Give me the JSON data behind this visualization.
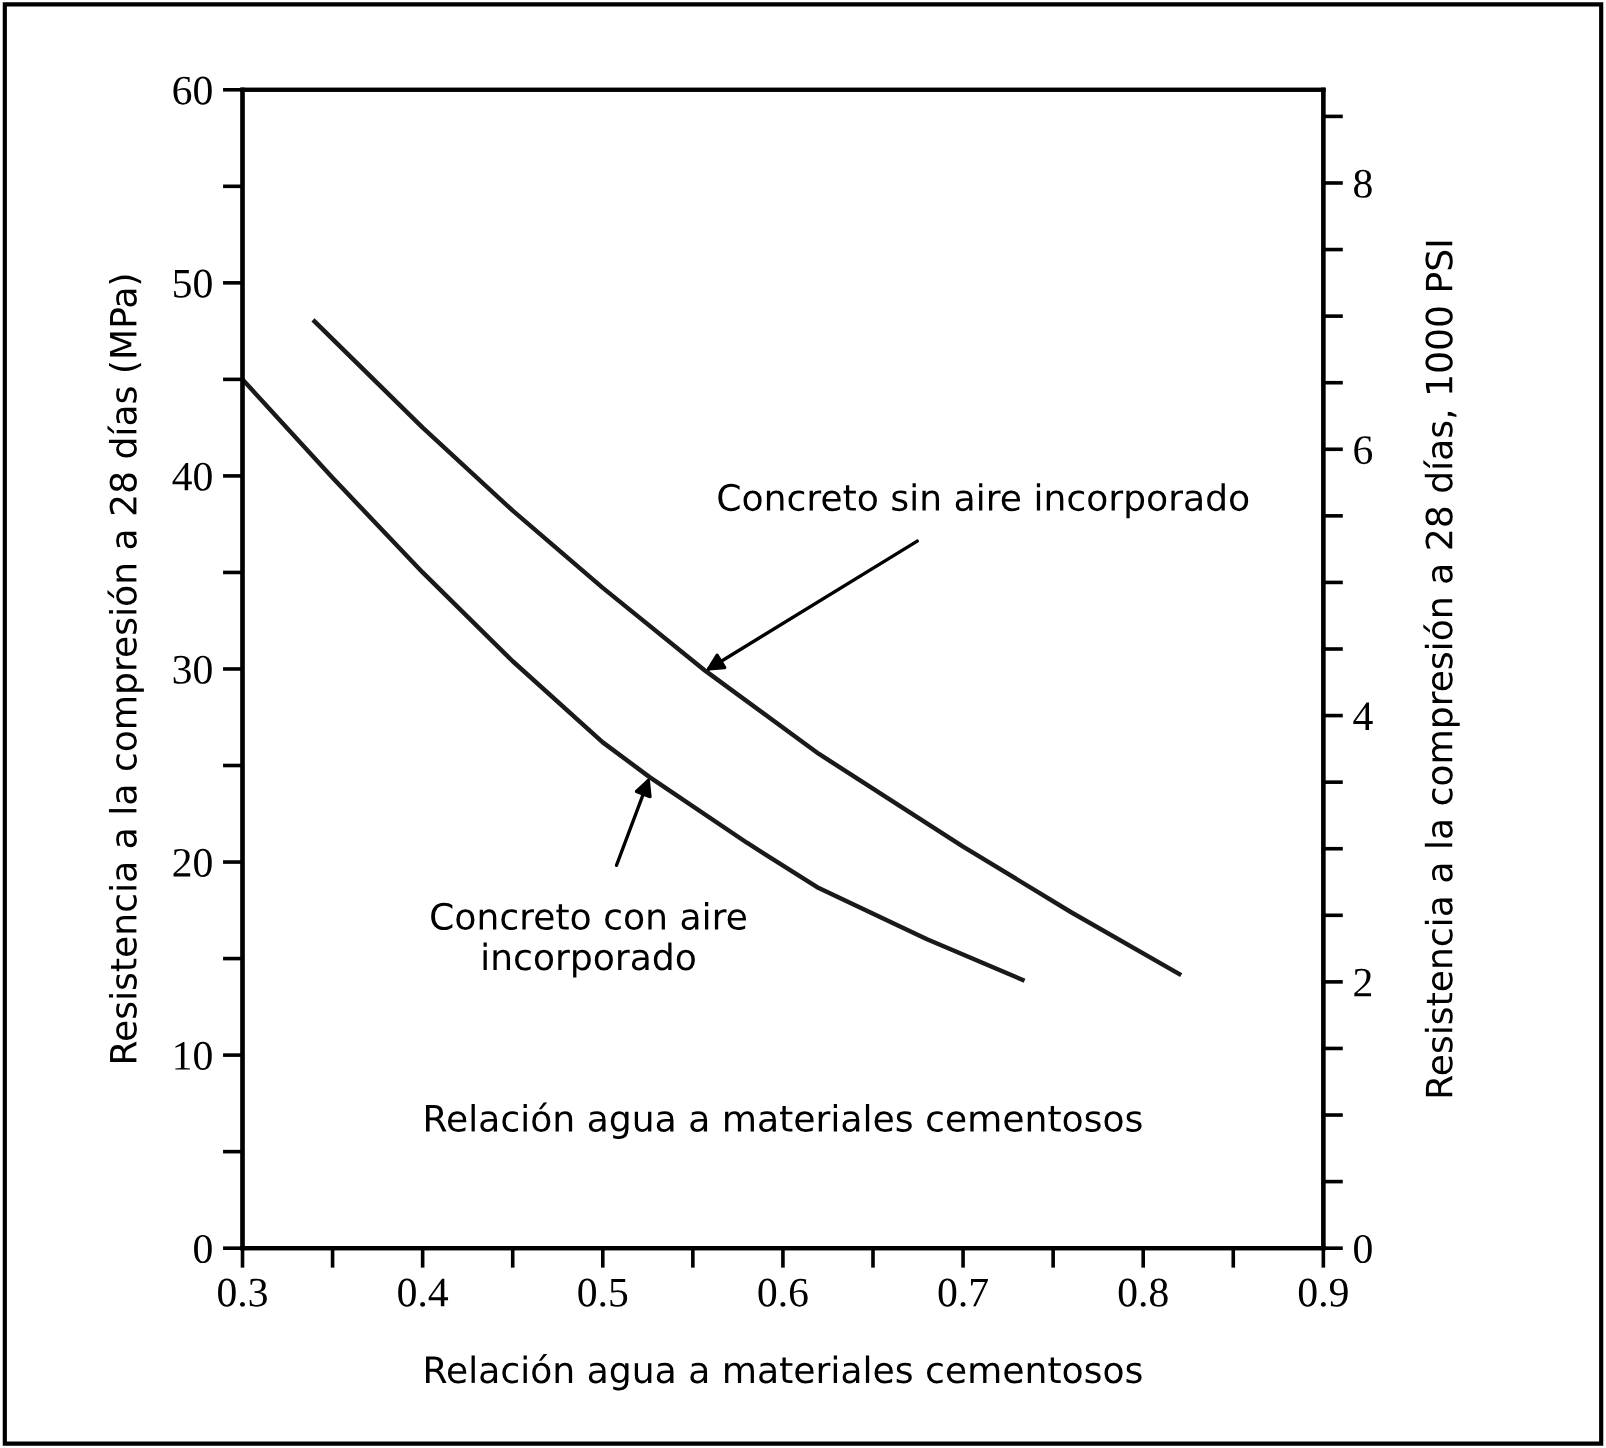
{
  "chart_data": {
    "type": "line",
    "xlabel": "Relación agua a materiales cementosos",
    "ylabel": "Resistencia a la compresión a 28 días (MPa)",
    "y2label": "Resistencia a la compresión a 28 días, 1000 PSI",
    "series": [
      {
        "color": "#1a1a1a",
        "x": [
          0.34,
          0.4,
          0.45,
          0.5,
          0.557,
          0.62,
          0.7,
          0.76,
          0.82
        ],
        "values": [
          48,
          42.5,
          38.2,
          34.2,
          29.9,
          25.6,
          20.8,
          17.4,
          14.2
        ]
      },
      {
        "color": "#1a1a1a",
        "x": [
          0.3,
          0.35,
          0.4,
          0.45,
          0.5,
          0.526,
          0.58,
          0.619,
          0.68,
          0.733
        ],
        "values": [
          45,
          39.9,
          35,
          30.4,
          26.2,
          24.4,
          21,
          18.7,
          16,
          13.9
        ]
      }
    ],
    "annotations": [
      {
        "text": "Concreto sin aire incorporado",
        "x": 0.557,
        "y": 29.9
      },
      {
        "text": "Concreto con aire\nincorporado",
        "x": 0.526,
        "y": 24.4
      },
      "Relación agua a materiales cementosos"
    ],
    "xlim": [
      0.3,
      0.9
    ],
    "ylim": [
      0,
      60
    ],
    "y2lim": [
      0,
      8.7
    ],
    "xticks": [
      0.3,
      {
        "value": 0.35,
        "label": null
      },
      0.4,
      {
        "value": 0.45,
        "label": null
      },
      0.5,
      {
        "value": 0.55,
        "label": null
      },
      0.6,
      {
        "value": 0.65,
        "label": null
      },
      0.7,
      {
        "value": 0.75,
        "label": null
      },
      0.8,
      {
        "value": 0.85,
        "label": null
      },
      0.9
    ],
    "yticks": [
      0,
      {
        "value": 5,
        "label": null
      },
      10,
      {
        "value": 15,
        "label": null
      },
      20,
      {
        "value": 25,
        "label": null
      },
      30,
      {
        "value": 35,
        "label": null
      },
      40,
      {
        "value": 45,
        "label": null
      },
      50,
      {
        "value": 55,
        "label": null
      },
      60
    ],
    "y2ticks": [
      0,
      {
        "value": 0.5,
        "label": null
      },
      {
        "value": 1,
        "label": null
      },
      {
        "value": 1.5,
        "label": null
      },
      2,
      {
        "value": 2.5,
        "label": null
      },
      {
        "value": 3,
        "label": null
      },
      {
        "value": 3.5,
        "label": null
      },
      4,
      {
        "value": 4.5,
        "label": null
      },
      {
        "value": 5,
        "label": null
      },
      {
        "value": 5.5,
        "label": null
      },
      6,
      {
        "value": 6.5,
        "label": null
      },
      {
        "value": 7,
        "label": null
      },
      {
        "value": 7.5,
        "label": null
      },
      8,
      {
        "value": 8.5,
        "label": null
      }
    ],
    "grid": false,
    "legend": false,
    "marker": "none",
    "line_style": "solid"
  }
}
